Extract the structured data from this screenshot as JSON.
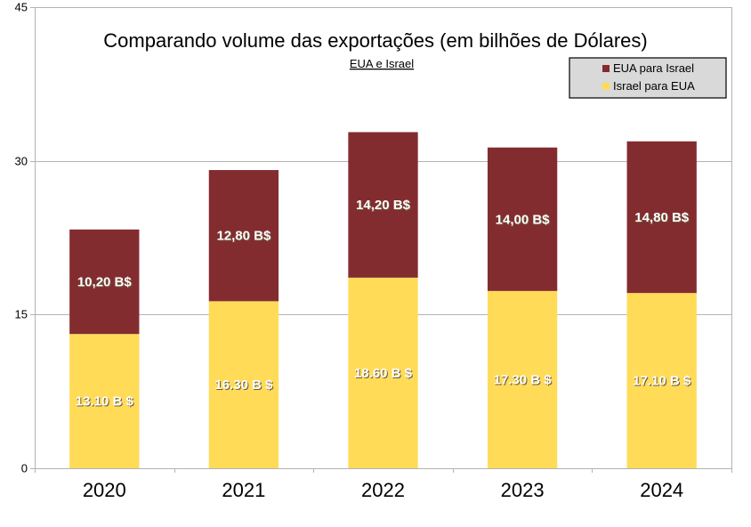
{
  "chart_data": {
    "type": "bar",
    "stacked": true,
    "title": "Comparando volume das exportações (em bilhões de Dólares)",
    "subtitle": "EUA e Israel",
    "xlabel": "",
    "ylabel": "",
    "categories": [
      "2020",
      "2021",
      "2022",
      "2023",
      "2024"
    ],
    "ylim": [
      0,
      45
    ],
    "yticks": [
      0,
      15,
      30,
      45
    ],
    "grid": true,
    "legend_position": "top-right",
    "series": [
      {
        "name": "Israel para EUA",
        "color": "#ffdb58",
        "values": [
          13.1,
          16.3,
          18.6,
          17.3,
          17.1
        ],
        "labels": [
          "13.10 B $",
          "16.30 B $",
          "18.60 B $",
          "17.30 B $",
          "17.10 B $"
        ]
      },
      {
        "name": "EUA para Israel",
        "color": "#832c30",
        "values": [
          10.2,
          12.8,
          14.2,
          14.0,
          14.8
        ],
        "labels": [
          "10,20 B$",
          "12,80 B$",
          "14,20 B$",
          "14,00 B$",
          "14,80 B$"
        ]
      }
    ],
    "legend": [
      {
        "name": "EUA para Israel",
        "color": "#832c30"
      },
      {
        "name": "Israel para EUA",
        "color": "#ffdb58"
      }
    ]
  }
}
